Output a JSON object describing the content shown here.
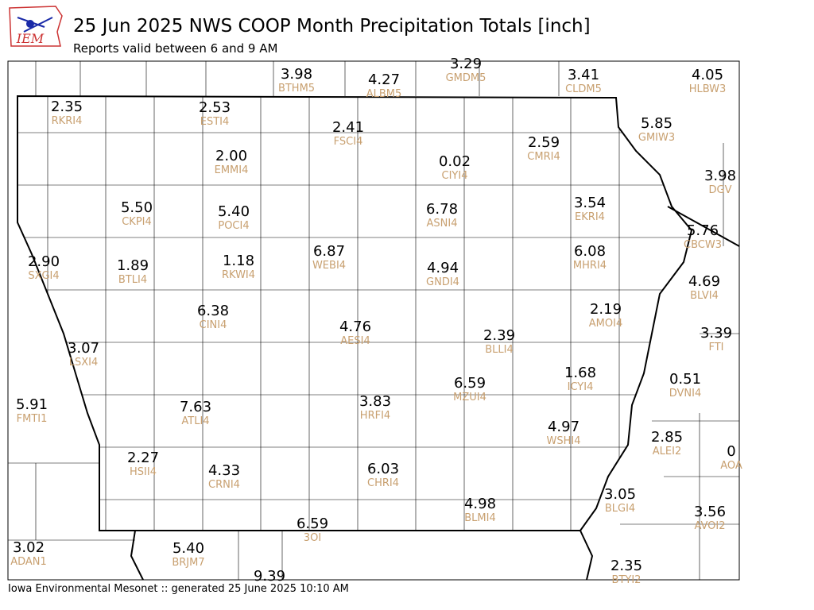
{
  "header": {
    "title": "25 Jun 2025 NWS COOP Month Precipitation Totals [inch]",
    "subtitle": "Reports valid between 6 and 9 AM",
    "logo": "IEM"
  },
  "footer": "Iowa Environmental Mesonet :: generated 25 June 2025 10:10 AM",
  "stations": [
    {
      "value": "3.98",
      "id": "BTHM5"
    },
    {
      "value": "4.27",
      "id": "ALBM5"
    },
    {
      "value": "3.29",
      "id": "GMDM5"
    },
    {
      "value": "3.41",
      "id": "CLDM5"
    },
    {
      "value": "4.05",
      "id": "HLBW3"
    },
    {
      "value": "2.35",
      "id": "RKRI4"
    },
    {
      "value": "2.53",
      "id": "ESTI4"
    },
    {
      "value": "2.41",
      "id": "FSCI4"
    },
    {
      "value": "5.85",
      "id": "GMIW3"
    },
    {
      "value": "2.59",
      "id": "CMRI4"
    },
    {
      "value": "0.02",
      "id": "CIYI4"
    },
    {
      "value": "2.00",
      "id": "EMMI4"
    },
    {
      "value": "3.98",
      "id": "DGV"
    },
    {
      "value": "5.50",
      "id": "CKPI4"
    },
    {
      "value": "5.40",
      "id": "POCI4"
    },
    {
      "value": "6.78",
      "id": "ASNI4"
    },
    {
      "value": "3.54",
      "id": "EKRI4"
    },
    {
      "value": "5.76",
      "id": "CBCW3"
    },
    {
      "value": "2.90",
      "id": "SXGI4"
    },
    {
      "value": "1.89",
      "id": "BTLI4"
    },
    {
      "value": "1.18",
      "id": "RKWI4"
    },
    {
      "value": "6.87",
      "id": "WEBI4"
    },
    {
      "value": "4.94",
      "id": "GNDI4"
    },
    {
      "value": "6.08",
      "id": "MHRI4"
    },
    {
      "value": "4.69",
      "id": "BLVI4"
    },
    {
      "value": "2.19",
      "id": "AMOI4"
    },
    {
      "value": "6.38",
      "id": "CINI4"
    },
    {
      "value": "4.76",
      "id": "AESI4"
    },
    {
      "value": "2.39",
      "id": "BLLI4"
    },
    {
      "value": "3.39",
      "id": "FTI"
    },
    {
      "value": "3.07",
      "id": "LSXI4"
    },
    {
      "value": "1.68",
      "id": "ICYI4"
    },
    {
      "value": "0.51",
      "id": "DVNI4"
    },
    {
      "value": "6.59",
      "id": "MZUI4"
    },
    {
      "value": "5.91",
      "id": "FMTI1"
    },
    {
      "value": "7.63",
      "id": "ATLI4"
    },
    {
      "value": "3.83",
      "id": "HRFI4"
    },
    {
      "value": "4.97",
      "id": "WSHI4"
    },
    {
      "value": "2.85",
      "id": "ALEI2"
    },
    {
      "value": "0",
      "id": "AOA"
    },
    {
      "value": "2.27",
      "id": "HSII4"
    },
    {
      "value": "4.33",
      "id": "CRNI4"
    },
    {
      "value": "6.03",
      "id": "CHRI4"
    },
    {
      "value": "4.98",
      "id": "BLMI4"
    },
    {
      "value": "3.05",
      "id": "BLGI4"
    },
    {
      "value": "3.56",
      "id": "AVOI2"
    },
    {
      "value": "6.59",
      "id": "3OI"
    },
    {
      "value": "3.02",
      "id": "ADAN1"
    },
    {
      "value": "5.40",
      "id": "BRJM7"
    },
    {
      "value": "9.39"
    },
    {
      "value": "2.35",
      "id": "BTYI2"
    }
  ]
}
